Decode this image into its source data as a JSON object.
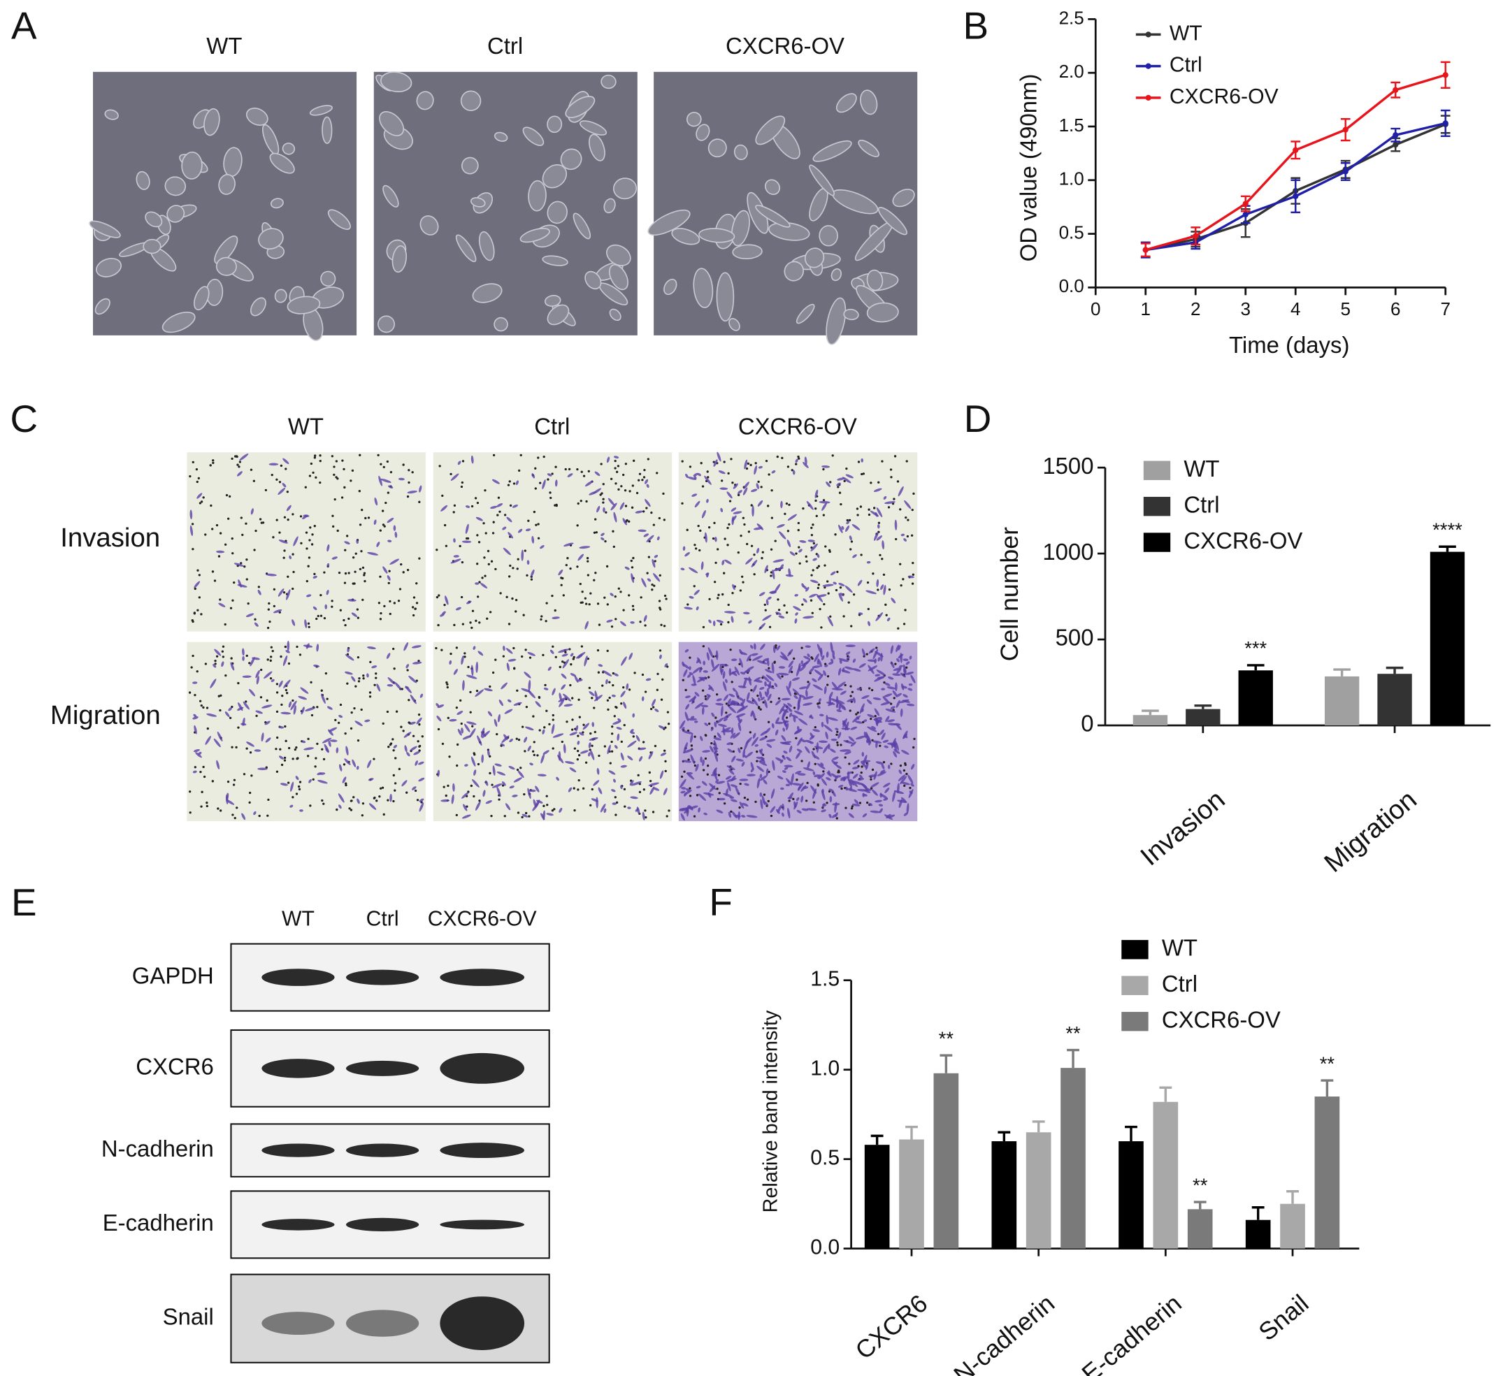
{
  "chart_data": [
    {
      "type": "line",
      "x_label": "Time (days)",
      "y_label": "OD value (490nm)",
      "x": [
        1,
        2,
        3,
        4,
        5,
        6,
        7
      ],
      "xlim": [
        0,
        7
      ],
      "xticks": [
        0,
        1,
        2,
        3,
        4,
        5,
        6,
        7
      ],
      "ylim": [
        0,
        2.5
      ],
      "yticks": [
        {
          "value": 0,
          "label": "0.0"
        },
        0.5,
        {
          "value": 1,
          "label": "1.0"
        },
        1.5,
        {
          "value": 2,
          "label": "2.0"
        },
        2.5
      ],
      "legend": "top-left",
      "series": [
        {
          "name": "WT",
          "color": "#333333",
          "values": [
            0.35,
            0.45,
            0.6,
            0.9,
            1.1,
            1.33,
            1.52
          ],
          "errors": [
            0.07,
            0.07,
            0.13,
            0.12,
            0.08,
            0.06,
            0.08
          ]
        },
        {
          "name": "Ctrl",
          "color": "#1f1fa8",
          "values": [
            0.35,
            0.42,
            0.68,
            0.85,
            1.08,
            1.42,
            1.53
          ],
          "errors": [
            0.07,
            0.06,
            0.08,
            0.15,
            0.08,
            0.06,
            0.12
          ]
        },
        {
          "name": "CXCR6-OV",
          "color": "#e8141c",
          "values": [
            0.35,
            0.48,
            0.78,
            1.28,
            1.47,
            1.84,
            1.98
          ],
          "errors": [
            0.06,
            0.08,
            0.07,
            0.08,
            0.1,
            0.07,
            0.12
          ]
        }
      ]
    },
    {
      "type": "bar",
      "y_label": "Cell number",
      "categories": [
        "Invasion",
        "Migration"
      ],
      "ylim": [
        0,
        1500
      ],
      "yticks": [
        0,
        500,
        1000,
        1500
      ],
      "legend": "top-left",
      "series": [
        {
          "name": "WT",
          "color": "#a0a0a0",
          "values": [
            60,
            285
          ],
          "errors": [
            25,
            40
          ]
        },
        {
          "name": "Ctrl",
          "color": "#333333",
          "values": [
            95,
            300
          ],
          "errors": [
            20,
            35
          ]
        },
        {
          "name": "CXCR6-OV",
          "color": "#000000",
          "values": [
            320,
            1010
          ],
          "errors": [
            30,
            30
          ],
          "significance": [
            "***",
            "****"
          ]
        }
      ]
    },
    {
      "type": "bar",
      "y_label": "Relative band intensity",
      "categories": [
        "CXCR6",
        "N-cadherin",
        "E-cadherin",
        "Snail"
      ],
      "ylim": [
        0,
        1.5
      ],
      "yticks": [
        {
          "value": 0,
          "label": "0.0"
        },
        0.5,
        {
          "value": 1,
          "label": "1.0"
        },
        1.5
      ],
      "legend": "top-right",
      "series": [
        {
          "name": "WT",
          "color": "#000000",
          "values": [
            0.58,
            0.6,
            0.6,
            0.16
          ],
          "errors": [
            0.05,
            0.05,
            0.08,
            0.07
          ]
        },
        {
          "name": "Ctrl",
          "color": "#a8a8a8",
          "values": [
            0.61,
            0.65,
            0.82,
            0.25
          ],
          "errors": [
            0.07,
            0.06,
            0.08,
            0.07
          ]
        },
        {
          "name": "CXCR6-OV",
          "color": "#7a7a7a",
          "values": [
            0.98,
            1.01,
            0.22,
            0.85
          ],
          "errors": [
            0.1,
            0.1,
            0.04,
            0.09
          ],
          "significance": [
            "**",
            "**",
            "**",
            "**"
          ]
        }
      ]
    }
  ],
  "figure": {
    "panel_letters": [
      "A",
      "B",
      "C",
      "D",
      "E",
      "F"
    ],
    "panel_a": {
      "columns": [
        "WT",
        "Ctrl",
        "CXCR6-OV"
      ]
    },
    "panel_c": {
      "columns": [
        "WT",
        "Ctrl",
        "CXCR6-OV"
      ],
      "rows": [
        "Invasion",
        "Migration"
      ]
    },
    "panel_e": {
      "columns": [
        "WT",
        "Ctrl",
        "CXCR6-OV"
      ],
      "rows": [
        "GAPDH",
        "CXCR6",
        "N-cadherin",
        "E-cadherin",
        "Snail"
      ]
    }
  }
}
